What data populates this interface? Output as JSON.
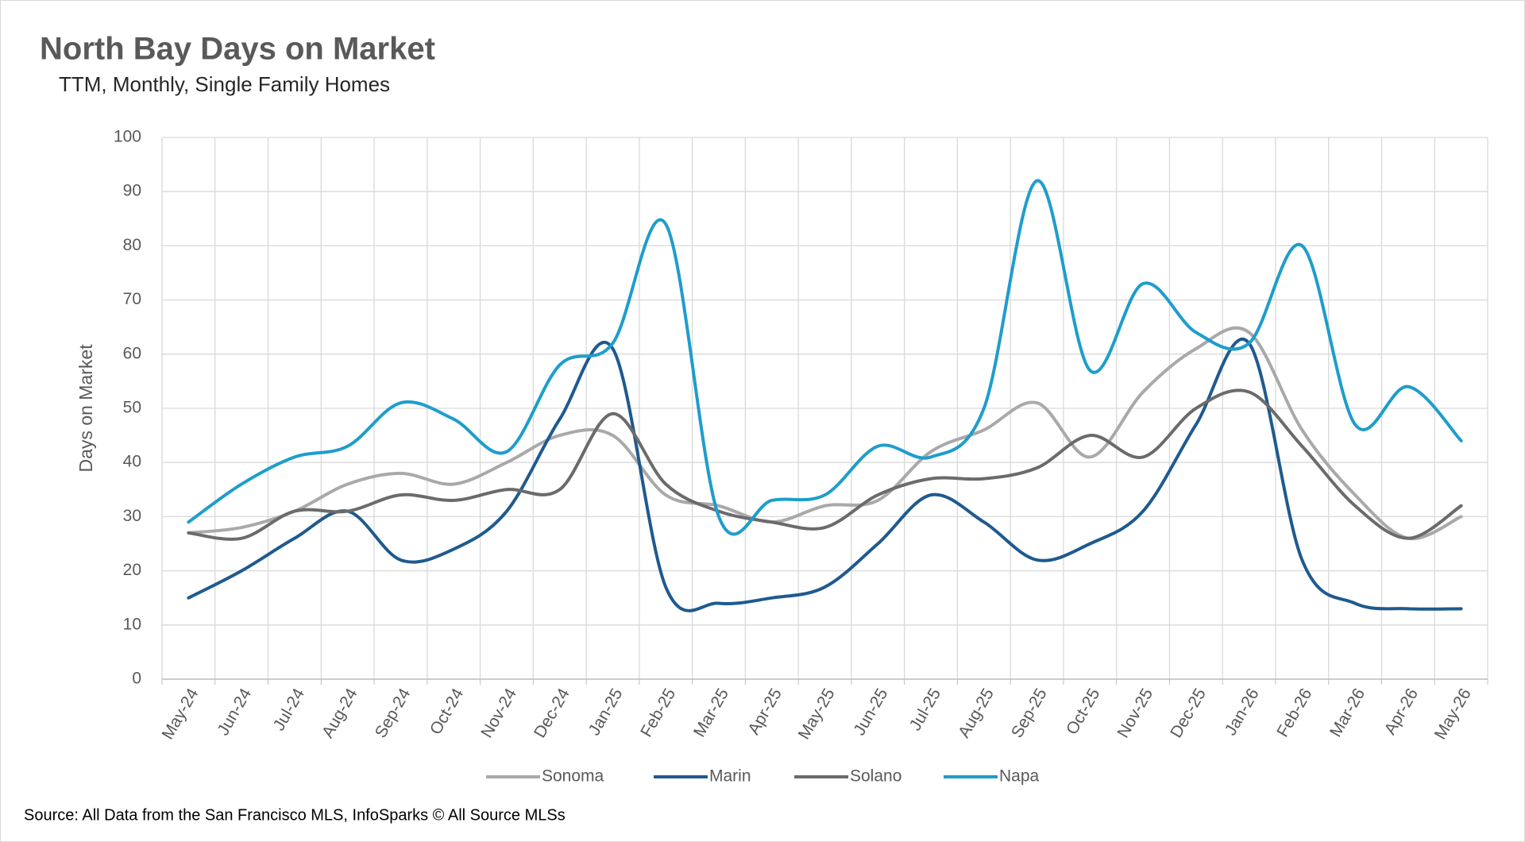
{
  "chart_data": {
    "type": "line",
    "title": "North Bay Days on Market",
    "subtitle": "TTM, Monthly, Single Family Homes",
    "y_label": "Days on Market",
    "source": "Source: All Data from the San Francisco MLS, InfoSparks © All Source MLSs",
    "categories": [
      "May-24",
      "Jun-24",
      "Jul-24",
      "Aug-24",
      "Sep-24",
      "Oct-24",
      "Nov-24",
      "Dec-24",
      "Jan-25",
      "Feb-25",
      "Mar-25",
      "Apr-25",
      "May-25",
      "Jun-25",
      "Jul-25",
      "Aug-25",
      "Sep-25",
      "Oct-25",
      "Nov-25",
      "Dec-25",
      "Jan-26",
      "Feb-26",
      "Mar-26",
      "Apr-26",
      "May-26"
    ],
    "series": [
      {
        "name": "Sonoma",
        "color": "#a9a9a9",
        "values": [
          27,
          28,
          31,
          36,
          38,
          36,
          40,
          45,
          45,
          34,
          32,
          29,
          32,
          33,
          42,
          46,
          51,
          41,
          53,
          61,
          64,
          46,
          34,
          26,
          30
        ]
      },
      {
        "name": "Marin",
        "color": "#1f5a8f",
        "values": [
          15,
          20,
          26,
          31,
          22,
          24,
          31,
          48,
          61,
          17,
          14,
          15,
          17,
          25,
          34,
          29,
          22,
          25,
          31,
          47,
          62,
          22,
          14,
          13,
          13
        ]
      },
      {
        "name": "Solano",
        "color": "#6b6b6b",
        "values": [
          27,
          26,
          31,
          31,
          34,
          33,
          35,
          35,
          49,
          36,
          31,
          29,
          28,
          34,
          37,
          37,
          39,
          45,
          41,
          50,
          53,
          43,
          32,
          26,
          32
        ]
      },
      {
        "name": "Napa",
        "color": "#1e9dcc",
        "values": [
          29,
          36,
          41,
          43,
          51,
          48,
          42,
          58,
          62,
          84,
          30,
          33,
          34,
          43,
          41,
          50,
          92,
          57,
          73,
          64,
          62,
          80,
          47,
          54,
          44
        ]
      }
    ],
    "ylim": [
      0,
      100
    ],
    "yticks": [
      0,
      10,
      20,
      30,
      40,
      50,
      60,
      70,
      80,
      90,
      100
    ],
    "grid": true
  }
}
